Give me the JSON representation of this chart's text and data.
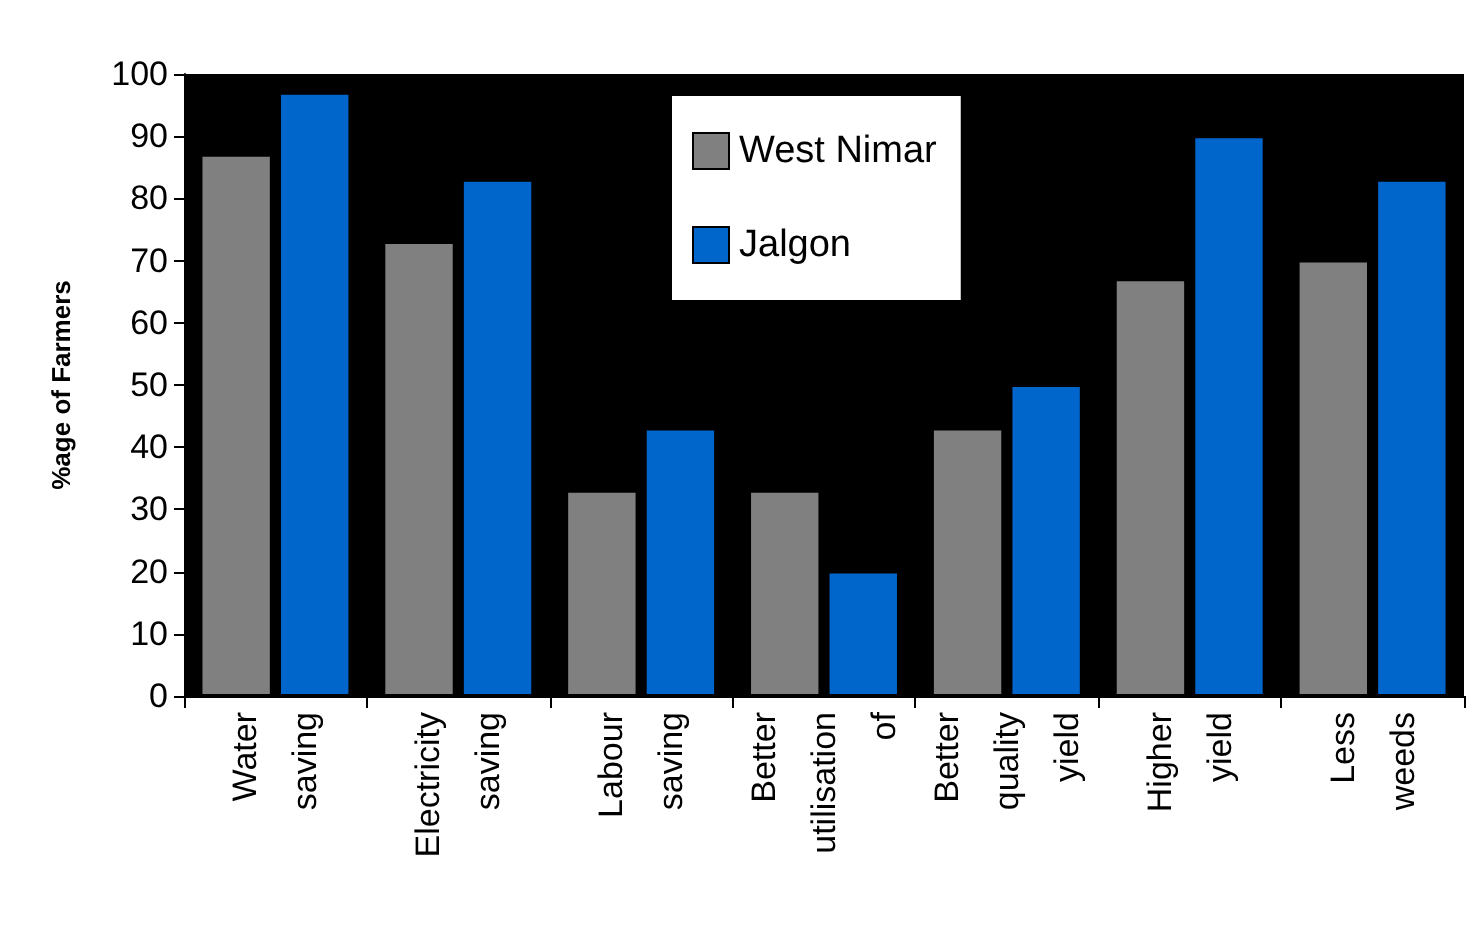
{
  "chart_data": {
    "type": "bar",
    "ylabel": "%age of Farmers",
    "categories": [
      "Water saving",
      "Electricity saving",
      "Labour saving",
      "Better utilisation of",
      "Better quality yield",
      "Higher yield",
      "Less weeds"
    ],
    "series": [
      {
        "name": "West Nimar",
        "color": "#808080",
        "values": [
          87,
          73,
          33,
          33,
          43,
          67,
          70
        ]
      },
      {
        "name": "Jalgon",
        "color": "#0066cc",
        "values": [
          97,
          83,
          43,
          20,
          50,
          90,
          83
        ]
      }
    ],
    "ylim": [
      0,
      100
    ],
    "yticks": [
      0,
      10,
      20,
      30,
      40,
      50,
      60,
      70,
      80,
      90,
      100
    ],
    "grid": false,
    "legend": "top"
  }
}
